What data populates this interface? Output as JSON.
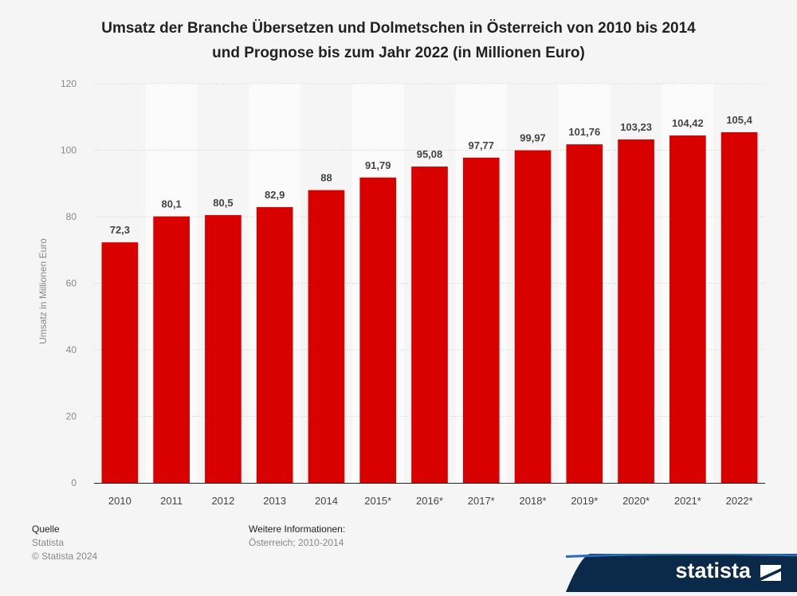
{
  "chart_data": {
    "type": "bar",
    "title_lines": [
      "Umsatz der Branche Übersetzen und Dolmetschen in Österreich von 2010 bis 2014",
      "und Prognose bis zum Jahr 2022 (in Millionen Euro)"
    ],
    "categories": [
      "2010",
      "2011",
      "2012",
      "2013",
      "2014",
      "2015*",
      "2016*",
      "2017*",
      "2018*",
      "2019*",
      "2020*",
      "2021*",
      "2022*"
    ],
    "values": [
      72.3,
      80.1,
      80.5,
      82.9,
      88,
      91.79,
      95.08,
      97.77,
      99.97,
      101.76,
      103.23,
      104.42,
      105.4
    ],
    "value_labels": [
      "72,3",
      "80,1",
      "80,5",
      "82,9",
      "88",
      "91,79",
      "95,08",
      "97,77",
      "99,97",
      "101,76",
      "103,23",
      "104,42",
      "105,4"
    ],
    "ylabel": "Umsatz in Millionen Euro",
    "xlabel": "",
    "ylim": [
      0,
      120
    ],
    "yticks": [
      0,
      20,
      40,
      60,
      80,
      100,
      120
    ],
    "bar_color": "#d90000",
    "grid": true
  },
  "footer": {
    "source_title": "Quelle",
    "source_name": "Statista",
    "copyright": "© Statista 2024",
    "info_title": "Weitere Informationen:",
    "info_text": "Österreich; 2010-2014"
  },
  "brand": {
    "name": "statista",
    "color": "#0b2a4a"
  }
}
